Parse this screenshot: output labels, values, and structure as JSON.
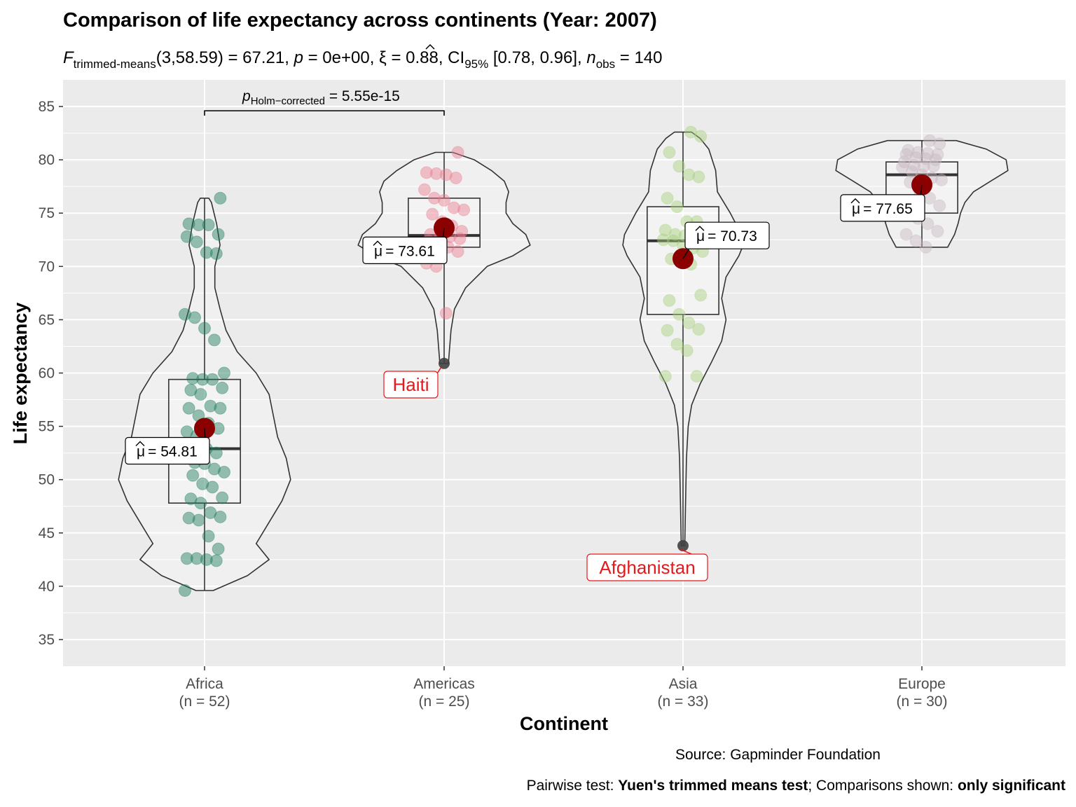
{
  "chart_data": {
    "type": "violin-box-scatter",
    "title": "Comparison of life expectancy across continents (Year: 2007)",
    "subtitle": {
      "stat_name": "F",
      "stat_sub": "trimmed-means",
      "df": "(3,58.59) = 67.21, ",
      "p_sym": "p",
      "p_val": " = 0e+00, ",
      "effect_sym": "ξ",
      "effect_val": " = 0.88, CI",
      "ci_sub": "95%",
      "ci_val": " [0.78, 0.96], ",
      "n_sym": "n",
      "n_sub": "obs",
      "n_val": " = 140"
    },
    "xlabel": "Continent",
    "ylabel": "Life expectancy",
    "ylim": [
      32.5,
      87.5
    ],
    "y_ticks": [
      35,
      40,
      45,
      50,
      55,
      60,
      65,
      70,
      75,
      80,
      85
    ],
    "grid": true,
    "groups": [
      {
        "name": "Africa",
        "n_label": "(n = 52)",
        "color": "#1b7b5a",
        "mean": 54.81,
        "mean_label": "= 54.81",
        "box": {
          "q1": 47.8,
          "median": 52.9,
          "q3": 59.4,
          "min": 39.6,
          "max": 76.4
        },
        "violin": [
          [
            39.6,
            0.1
          ],
          [
            41,
            0.5
          ],
          [
            42.5,
            0.75
          ],
          [
            44,
            0.6
          ],
          [
            46,
            0.75
          ],
          [
            48,
            0.9
          ],
          [
            50,
            1.0
          ],
          [
            52,
            0.95
          ],
          [
            54,
            0.85
          ],
          [
            56,
            0.8
          ],
          [
            58,
            0.75
          ],
          [
            60,
            0.6
          ],
          [
            62,
            0.38
          ],
          [
            64,
            0.25
          ],
          [
            66,
            0.18
          ],
          [
            68,
            0.12
          ],
          [
            70,
            0.12
          ],
          [
            72,
            0.18
          ],
          [
            74,
            0.14
          ],
          [
            76,
            0.08
          ],
          [
            76.4,
            0.05
          ]
        ],
        "points": [
          39.6,
          42.4,
          42.5,
          42.6,
          42.6,
          43.5,
          44.7,
          46.2,
          46.4,
          46.5,
          46.9,
          47.8,
          48.2,
          48.3,
          49.3,
          49.6,
          50.4,
          50.7,
          51.0,
          51.5,
          51.6,
          52.3,
          52.5,
          52.9,
          54.1,
          54.5,
          54.8,
          55.3,
          56.0,
          56.7,
          56.7,
          56.9,
          58.0,
          58.4,
          58.6,
          59.4,
          59.4,
          59.5,
          60.0,
          63.1,
          64.2,
          65.2,
          65.5,
          71.2,
          71.3,
          72.3,
          72.8,
          73.0,
          73.9,
          73.9,
          74.0,
          76.4
        ]
      },
      {
        "name": "Americas",
        "n_label": "(n = 25)",
        "color": "#e87d8f",
        "mean": 73.61,
        "mean_label": "= 73.61",
        "box": {
          "q1": 71.8,
          "median": 72.9,
          "q3": 76.4,
          "min": 60.9,
          "max": 80.7
        },
        "violin": [
          [
            60.9,
            0.05
          ],
          [
            62,
            0.06
          ],
          [
            64,
            0.08
          ],
          [
            66,
            0.12
          ],
          [
            68,
            0.25
          ],
          [
            70,
            0.5
          ],
          [
            71,
            0.8
          ],
          [
            72,
            1.0
          ],
          [
            73,
            0.95
          ],
          [
            74,
            0.8
          ],
          [
            75,
            0.72
          ],
          [
            76,
            0.72
          ],
          [
            77,
            0.75
          ],
          [
            78,
            0.7
          ],
          [
            79,
            0.55
          ],
          [
            80,
            0.35
          ],
          [
            80.7,
            0.1
          ]
        ],
        "points": [
          65.6,
          70.0,
          70.3,
          71.4,
          71.8,
          72.0,
          72.4,
          72.6,
          72.8,
          72.9,
          73.0,
          73.3,
          73.8,
          74.2,
          74.9,
          75.3,
          75.5,
          76.2,
          76.4,
          77.2,
          78.3,
          78.6,
          78.7,
          78.8,
          80.7
        ],
        "outlier": {
          "value": 60.9,
          "label": "Haiti"
        }
      },
      {
        "name": "Asia",
        "n_label": "(n = 33)",
        "color": "#a7d07a",
        "mean": 70.73,
        "mean_label": "= 70.73",
        "box": {
          "q1": 65.5,
          "median": 72.4,
          "q3": 75.6,
          "min": 43.8,
          "max": 82.6
        },
        "violin": [
          [
            43.8,
            0.02
          ],
          [
            48,
            0.03
          ],
          [
            52,
            0.04
          ],
          [
            55,
            0.06
          ],
          [
            57,
            0.1
          ],
          [
            59,
            0.2
          ],
          [
            61,
            0.33
          ],
          [
            63,
            0.45
          ],
          [
            65,
            0.5
          ],
          [
            67,
            0.45
          ],
          [
            69,
            0.5
          ],
          [
            71,
            0.65
          ],
          [
            72,
            0.7
          ],
          [
            73,
            0.68
          ],
          [
            75,
            0.55
          ],
          [
            77,
            0.4
          ],
          [
            79,
            0.38
          ],
          [
            81,
            0.3
          ],
          [
            82,
            0.2
          ],
          [
            82.6,
            0.1
          ]
        ],
        "points": [
          59.7,
          59.7,
          62.1,
          62.7,
          64.0,
          64.1,
          64.7,
          65.5,
          66.8,
          67.3,
          70.2,
          70.6,
          70.7,
          71.4,
          71.7,
          72.0,
          72.4,
          72.5,
          72.8,
          72.9,
          73.0,
          73.4,
          74.2,
          74.2,
          75.6,
          76.4,
          78.4,
          78.6,
          79.4,
          80.7,
          82.2,
          82.6
        ],
        "outlier": {
          "value": 43.8,
          "label": "Afghanistan"
        }
      },
      {
        "name": "Europe",
        "n_label": "(n = 30)",
        "color": "#c8b8c0",
        "mean": 77.65,
        "mean_label": "= 77.65",
        "box": {
          "q1": 75.0,
          "median": 78.6,
          "q3": 79.8,
          "min": 71.8,
          "max": 81.8
        },
        "violin": [
          [
            71.8,
            0.3
          ],
          [
            73,
            0.38
          ],
          [
            74,
            0.42
          ],
          [
            75,
            0.45
          ],
          [
            76,
            0.5
          ],
          [
            77,
            0.6
          ],
          [
            78,
            0.8
          ],
          [
            79,
            1.0
          ],
          [
            80,
            0.98
          ],
          [
            81,
            0.75
          ],
          [
            81.8,
            0.4
          ]
        ],
        "points": [
          71.8,
          72.4,
          73.0,
          73.3,
          74.0,
          74.5,
          75.3,
          75.7,
          76.4,
          77.0,
          77.9,
          78.1,
          78.3,
          78.6,
          78.9,
          79.3,
          79.4,
          79.4,
          79.5,
          79.8,
          80.0,
          80.1,
          80.2,
          80.5,
          80.5,
          80.6,
          80.7,
          80.9,
          81.5,
          81.8
        ]
      }
    ],
    "pairwise": {
      "from": "Africa",
      "to": "Americas",
      "y": 84.6,
      "p_sym": "p",
      "p_sub": "Holm−corrected",
      "p_val": " = 5.55e-15"
    },
    "caption_source": "Source: Gapminder Foundation",
    "caption_pairwise": {
      "part1": "Pairwise test: ",
      "bold1": "Yuen's trimmed means test",
      "part2": "; Comparisons shown: ",
      "bold2": "only significant"
    },
    "colors": {
      "panel": "#ebebeb",
      "grid": "#ffffff",
      "mean_point": "#8b0000",
      "outlier_point": "#404040",
      "outlier_text": "#e41a1c"
    }
  }
}
